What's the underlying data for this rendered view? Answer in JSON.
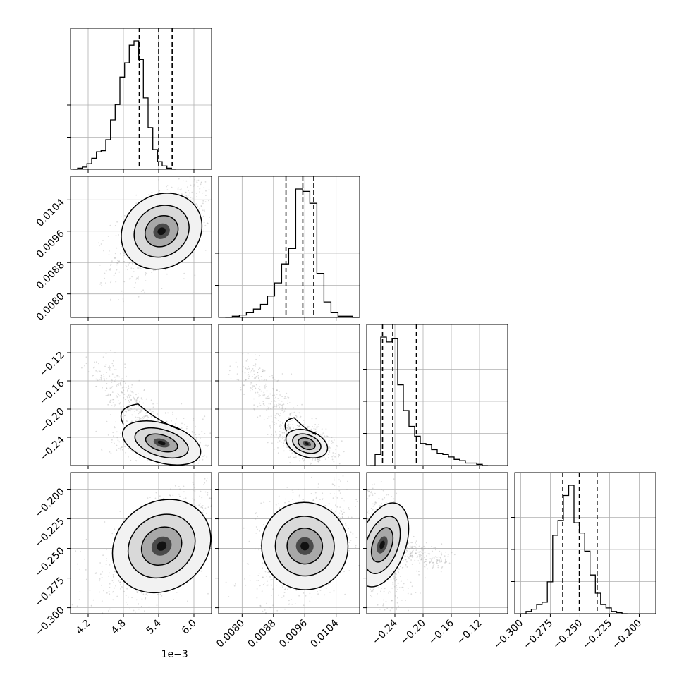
{
  "chart_data": {
    "type": "corner",
    "parameters": [
      {
        "range": [
          3.9,
          6.3
        ],
        "ticks": [
          4.2,
          4.8,
          5.4,
          6.0
        ],
        "tick_labels": [
          "4.2",
          "4.8",
          "5.4",
          "6.0"
        ],
        "offset_label": "1e−3",
        "quantiles": [
          5.07,
          5.4,
          5.63
        ],
        "hist": {
          "bin_start": 3.94,
          "bin_width": 0.08,
          "counts": [
            0,
            1,
            2,
            5,
            10,
            16,
            17,
            27,
            45,
            59,
            84,
            97,
            113,
            117,
            100,
            65,
            38,
            18,
            7,
            3,
            1,
            0
          ]
        }
      },
      {
        "range": [
          0.0074,
          0.011
        ],
        "ticks": [
          0.008,
          0.0088,
          0.0096,
          0.0104
        ],
        "tick_labels": [
          "0.0080",
          "0.0088",
          "0.0096",
          "0.0104"
        ],
        "quantiles": [
          0.00912,
          0.00955,
          0.00983
        ],
        "hist": {
          "bin_start": 0.00757,
          "bin_width": 0.00018,
          "counts": [
            0,
            1,
            2,
            4,
            7,
            11,
            18,
            29,
            45,
            58,
            108,
            106,
            96,
            37,
            13,
            4,
            1,
            1,
            0
          ]
        }
      },
      {
        "range": [
          -0.28,
          -0.08
        ],
        "ticks": [
          -0.24,
          -0.2,
          -0.16,
          -0.12
        ],
        "tick_labels": [
          "−0.24",
          "−0.20",
          "−0.16",
          "−0.12"
        ],
        "quantiles": [
          -0.2575,
          -0.243,
          -0.2095
        ],
        "hist": {
          "bin_start": -0.276,
          "bin_width": 0.008,
          "counts": [
            0,
            9,
            105,
            101,
            104,
            66,
            45,
            32,
            24,
            18,
            17,
            13,
            10,
            9,
            7,
            5,
            4,
            2,
            2,
            1,
            0
          ]
        }
      },
      {
        "range": [
          -0.305,
          -0.186
        ],
        "ticks": [
          -0.3,
          -0.275,
          -0.25,
          -0.225,
          -0.2
        ],
        "tick_labels": [
          "−0.300",
          "−0.275",
          "−0.250",
          "−0.225",
          "−0.200"
        ],
        "quantiles": [
          -0.2645,
          -0.2505,
          -0.2355
        ],
        "hist": {
          "bin_start": -0.3,
          "bin_width": 0.0045,
          "counts": [
            0,
            2,
            4,
            8,
            10,
            28,
            69,
            82,
            104,
            113,
            80,
            71,
            55,
            34,
            18,
            8,
            5,
            2,
            1,
            0
          ]
        }
      }
    ],
    "pairs": [
      {
        "x": 0,
        "y": 1,
        "center": [
          5.45,
          0.0096
        ],
        "sigma": [
          0.26,
          0.0004
        ],
        "rho": 0.55,
        "tail": "none"
      },
      {
        "x": 0,
        "y": 2,
        "center": [
          5.45,
          -0.248
        ],
        "sigma": [
          0.25,
          0.012
        ],
        "rho": -0.25,
        "tail": "up-left"
      },
      {
        "x": 1,
        "y": 2,
        "center": [
          0.00965,
          -0.249
        ],
        "sigma": [
          0.0002,
          0.008
        ],
        "rho": -0.3,
        "tail": "up-left"
      },
      {
        "x": 0,
        "y": 3,
        "center": [
          5.45,
          -0.248
        ],
        "sigma": [
          0.32,
          0.016
        ],
        "rho": 0.6,
        "tail": "none"
      },
      {
        "x": 1,
        "y": 3,
        "center": [
          0.0096,
          -0.248
        ],
        "sigma": [
          0.0004,
          0.016
        ],
        "rho": 0.35,
        "tail": "none"
      },
      {
        "x": 2,
        "y": 3,
        "center": [
          -0.258,
          -0.247
        ],
        "sigma": [
          0.012,
          0.016
        ],
        "rho": -0.3,
        "tail": "right"
      }
    ],
    "grid": true,
    "colors": {
      "line": "#000000",
      "grid": "#b0b0b0",
      "points": "#9a9a9a"
    }
  }
}
